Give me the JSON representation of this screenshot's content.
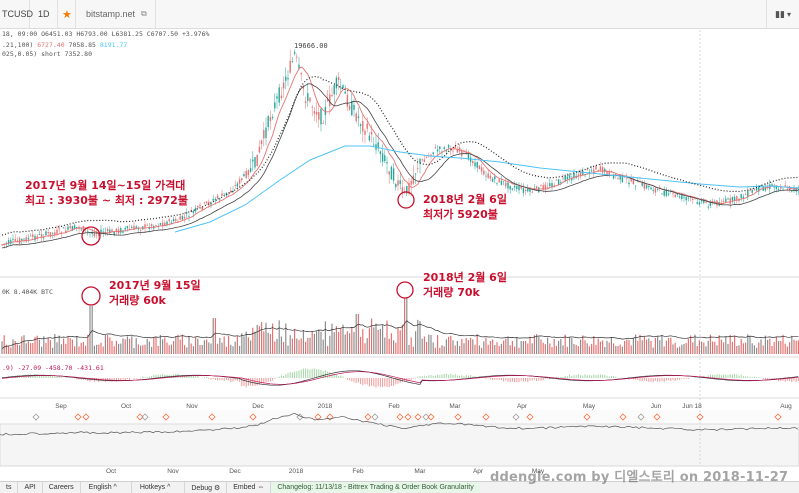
{
  "toolbar": {
    "symbol": "TCUSD",
    "interval": "1D",
    "star_icon": "star-icon",
    "source": "bitstamp.net",
    "link_icon": "link-icon",
    "right_menu": "▾"
  },
  "status": {
    "ohlc": "18, 09:00  O6451.03  H6793.00  L6381.25  C6707.50  +3.976%",
    "ma_values": [
      ".21,100)",
      "6727.40",
      "7058.85",
      "8191.77"
    ],
    "ma_colors": [
      "#555555",
      "#e57373",
      "#555555",
      "#4fc3f7"
    ],
    "short_line": "025,0.05)  short  7352.80",
    "volume": "0K  8.404K  BTC",
    "macd": ".9)  -27.09  -458.70  -431.61"
  },
  "chart": {
    "high_label": "19666.00",
    "price_axis_color": "#26a69a",
    "down_color": "#e57373",
    "ma_color": "#4fc3f7"
  },
  "annotations": {
    "sep_price_line1": "2017년 9월 14일~15일 가격대",
    "sep_price_line2": "최고 : 3930불 ~ 최저 : 2972불",
    "feb_price_line1": "2018년 2월 6일",
    "feb_price_line2": "최저가 5920불",
    "sep_vol_line1": "2017년 9월 15일",
    "sep_vol_line2": "거래량 60k",
    "feb_vol_line1": "2018년 2월 6일",
    "feb_vol_line2": "거래량 70k",
    "color": "#c8102e"
  },
  "time_axis_upper": [
    "Sep",
    "Oct",
    "Nov",
    "Dec",
    "2018",
    "Feb",
    "Mar",
    "Apr",
    "May",
    "Jun",
    "Jun 18",
    "Aug"
  ],
  "time_axis_lower": [
    "Oct",
    "Nov",
    "Dec",
    "2018",
    "Feb",
    "Mar",
    "Apr",
    "May"
  ],
  "bottom_bar": {
    "items": [
      "ts",
      "API",
      "Careers",
      "English ^",
      "Hotkeys ^",
      "Debug ⚙",
      "Embed ⇔"
    ],
    "changelog": "Changelog: 11/13/18 - Bittrex Trading & Order Book Granularity"
  },
  "watermark": "ddengle.com by 디엘스토리 on 2018-11-27"
}
